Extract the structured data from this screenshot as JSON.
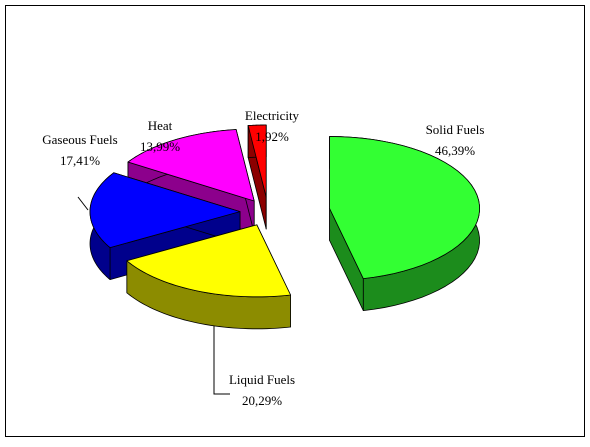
{
  "chart_data": {
    "type": "pie3d",
    "categories": [
      "Solid Fuels",
      "Liquid Fuels",
      "Gaseous Fuels",
      "Heat",
      "Electricity"
    ],
    "values": [
      46.39,
      20.29,
      17.41,
      13.99,
      1.92
    ],
    "value_labels": [
      "46,39%",
      "20,29%",
      "17,41%",
      "13,99%",
      "1,92%"
    ],
    "colors": [
      "#33ff33",
      "#ffff00",
      "#0000ff",
      "#ff00ff",
      "#ff0000"
    ]
  }
}
